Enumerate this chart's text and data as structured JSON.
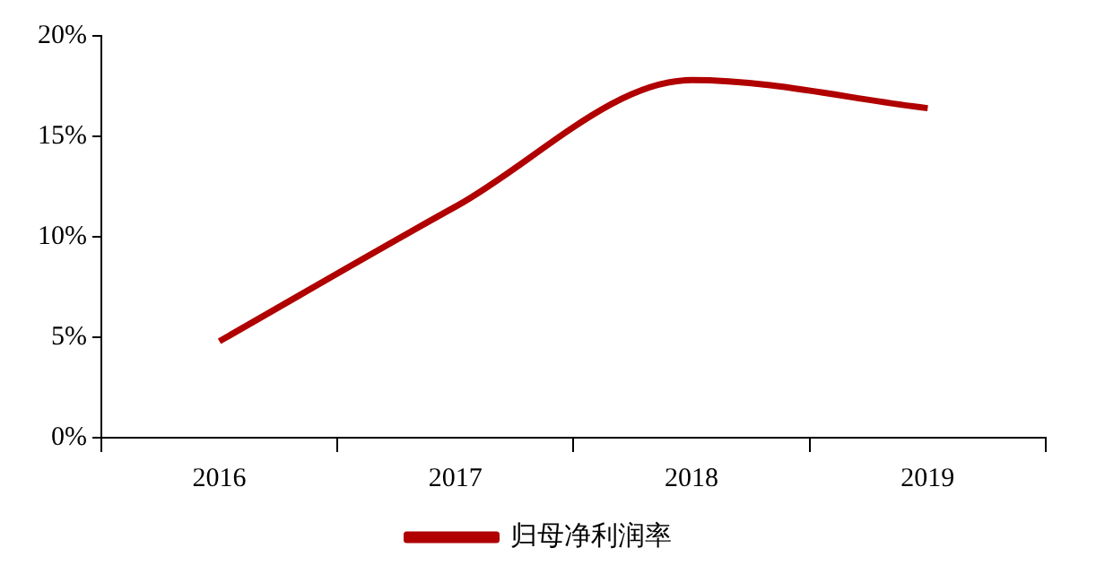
{
  "chart_data": {
    "type": "line",
    "categories": [
      "2016",
      "2017",
      "2018",
      "2019"
    ],
    "series": [
      {
        "name": "归母净利润率",
        "color": "#b00000",
        "values": [
          4.8,
          11.5,
          17.8,
          16.4
        ]
      }
    ],
    "ylim": [
      0,
      20
    ],
    "yticks": [
      {
        "value": 0,
        "label": "0%"
      },
      {
        "value": 5,
        "label": "5%"
      },
      {
        "value": 10,
        "label": "10%"
      },
      {
        "value": 15,
        "label": "15%"
      },
      {
        "value": 20,
        "label": "20%"
      }
    ],
    "grid": false,
    "legend": "bottom",
    "marker": "none",
    "line_style": "solid"
  }
}
